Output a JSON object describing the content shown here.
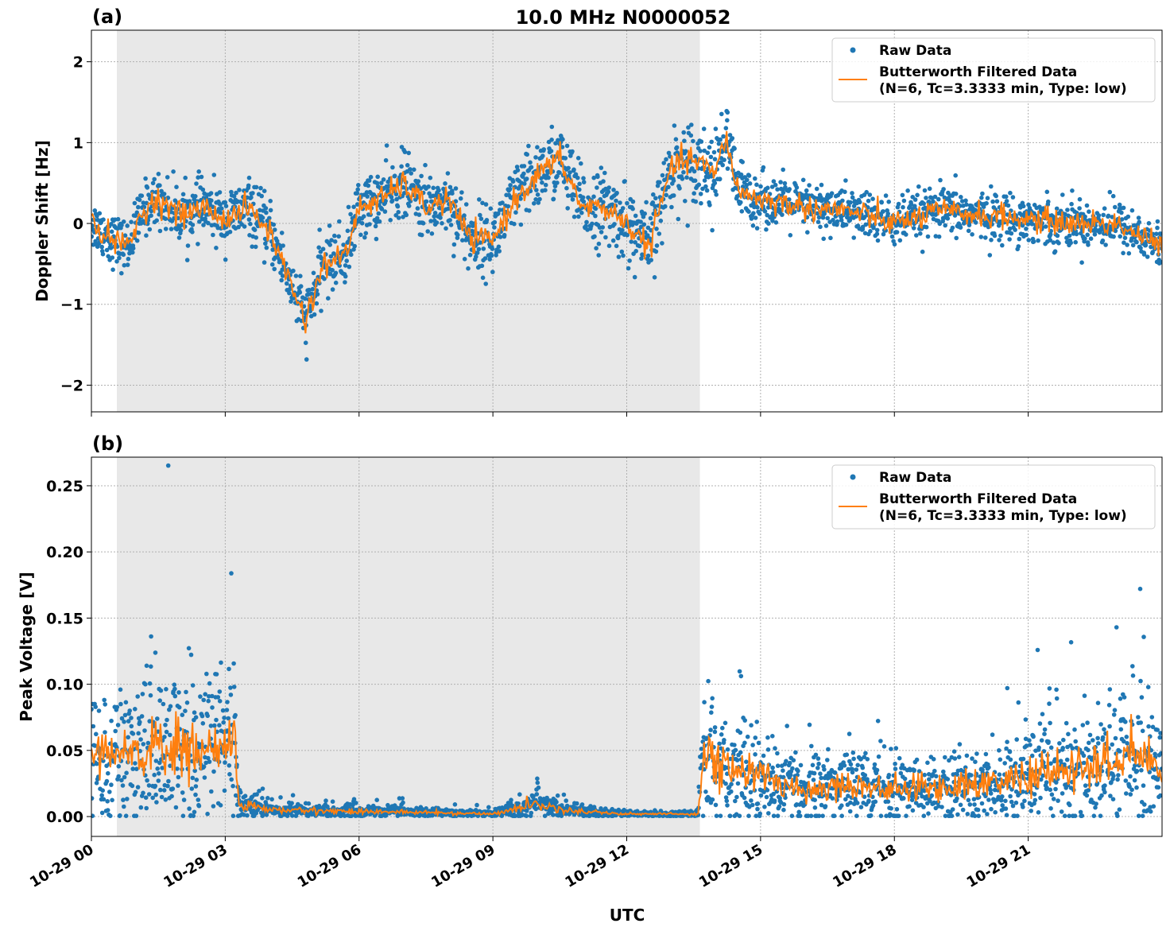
{
  "title": "10.0 MHz N0000052",
  "xlabel": "UTC",
  "x_ticks": [
    "10-29 00",
    "10-29 03",
    "10-29 06",
    "10-29 09",
    "10-29 12",
    "10-29 15",
    "10-29 18",
    "10-29 21"
  ],
  "colors": {
    "raw": "#1f77b4",
    "filtered": "#ff7f0e",
    "shade": "#e8e8e8",
    "grid": "#b0b0b0"
  },
  "chart_data": [
    {
      "type": "scatter",
      "panel_label": "(a)",
      "ylabel": "Doppler Shift [Hz]",
      "xlim_hours": [
        0,
        24
      ],
      "ylim": [
        -2.33,
        2.39
      ],
      "y_ticks": [
        {
          "v": -2,
          "label": "−2"
        },
        {
          "v": -1,
          "label": "−1"
        },
        {
          "v": 0,
          "label": "0"
        },
        {
          "v": 1,
          "label": "1"
        },
        {
          "v": 2,
          "label": "2"
        }
      ],
      "shaded_interval_hours": [
        0.57,
        13.64
      ],
      "grid": true,
      "legend": {
        "placement": "top-right",
        "entries": [
          "Raw Data",
          "Butterworth Filtered Data",
          "(N=6, Tc=3.3333 min, Type: low)"
        ]
      },
      "series": [
        {
          "name": "Butterworth Filtered Data",
          "hours": [
            0,
            0.5,
            0.8,
            1.2,
            1.5,
            2,
            2.5,
            3,
            3.5,
            4,
            4.3,
            4.8,
            5.2,
            5.7,
            6,
            6.5,
            7,
            7.5,
            8,
            8.5,
            9,
            9.5,
            10,
            10.5,
            11,
            11.5,
            12,
            12.5,
            13,
            13.5,
            14,
            14.2,
            14.5,
            15,
            16,
            17,
            18,
            19,
            20,
            21,
            22,
            23,
            24
          ],
          "values": [
            0,
            -0.2,
            -0.3,
            0.2,
            0.3,
            0.1,
            0.2,
            0.05,
            0.2,
            -0.1,
            -0.5,
            -1.2,
            -0.5,
            -0.4,
            0.2,
            0.3,
            0.5,
            0.2,
            0.3,
            -0.2,
            -0.2,
            0.3,
            0.6,
            0.8,
            0.2,
            0.2,
            0.0,
            -0.3,
            0.7,
            0.8,
            0.6,
            1.1,
            0.4,
            0.3,
            0.2,
            0.15,
            0.0,
            0.15,
            0.1,
            0.05,
            0.0,
            0.0,
            -0.3
          ]
        },
        {
          "name": "Raw Data",
          "spread_hours": [
            0,
            9,
            14,
            15,
            24
          ],
          "spread": [
            0.22,
            0.3,
            0.35,
            0.22,
            0.2
          ]
        }
      ]
    },
    {
      "type": "scatter",
      "panel_label": "(b)",
      "ylabel": "Peak Voltage [V]",
      "xlim_hours": [
        0,
        24
      ],
      "ylim": [
        -0.015,
        0.2716
      ],
      "y_ticks": [
        {
          "v": 0,
          "label": "0.00"
        },
        {
          "v": 0.05,
          "label": "0.05"
        },
        {
          "v": 0.1,
          "label": "0.10"
        },
        {
          "v": 0.15,
          "label": "0.15"
        },
        {
          "v": 0.2,
          "label": "0.20"
        },
        {
          "v": 0.25,
          "label": "0.25"
        }
      ],
      "shaded_interval_hours": [
        0.57,
        13.64
      ],
      "grid": true,
      "legend": {
        "placement": "top-right",
        "entries": [
          "Raw Data",
          "Butterworth Filtered Data",
          "(N=6, Tc=3.3333 min, Type: low)"
        ]
      },
      "series": [
        {
          "name": "Butterworth Filtered Data",
          "hours": [
            0,
            1,
            2,
            3,
            3.2,
            3.3,
            4,
            6,
            9,
            10,
            10.5,
            12,
            13.6,
            13.7,
            14,
            15,
            16,
            17,
            18,
            20,
            22,
            23,
            23.5,
            24
          ],
          "values": [
            0.04,
            0.05,
            0.05,
            0.05,
            0.06,
            0.01,
            0.005,
            0.004,
            0.002,
            0.01,
            0.005,
            0.002,
            0.002,
            0.045,
            0.04,
            0.03,
            0.02,
            0.025,
            0.02,
            0.025,
            0.035,
            0.04,
            0.05,
            0.03
          ]
        },
        {
          "name": "Raw Data",
          "spread_relative": 0.6
        }
      ]
    }
  ]
}
